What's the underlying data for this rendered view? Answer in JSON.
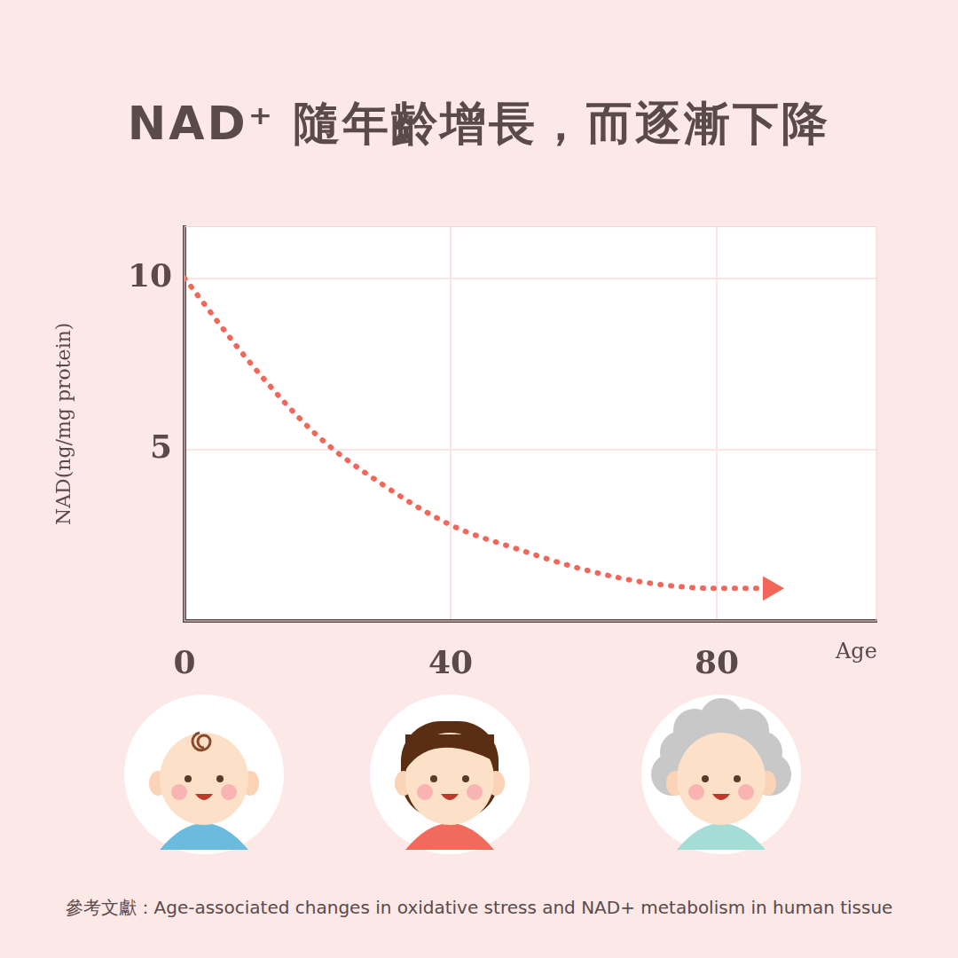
{
  "chart_data": {
    "type": "line",
    "title": "NAD⁺ 隨年齡增長，而逐漸下降",
    "x_label": "Age",
    "y_label": "NAD(ng/mg protein)",
    "x": [
      0,
      10,
      20,
      30,
      40,
      50,
      60,
      70,
      80,
      88
    ],
    "values": [
      10,
      7.5,
      5.4,
      3.95,
      2.8,
      2.1,
      1.5,
      1.1,
      0.95,
      0.95
    ],
    "color": "#f2675a",
    "line_style": "dotted",
    "marker": "arrow",
    "xlim": [
      0,
      104
    ],
    "xticks": [
      0,
      40,
      80
    ],
    "ylim": [
      0,
      11.5
    ],
    "yticks": [
      5,
      10
    ],
    "grid": true,
    "source": "參考文獻：Age-associated changes in oxidative stress and NAD+ metabolism in human tissue"
  }
}
